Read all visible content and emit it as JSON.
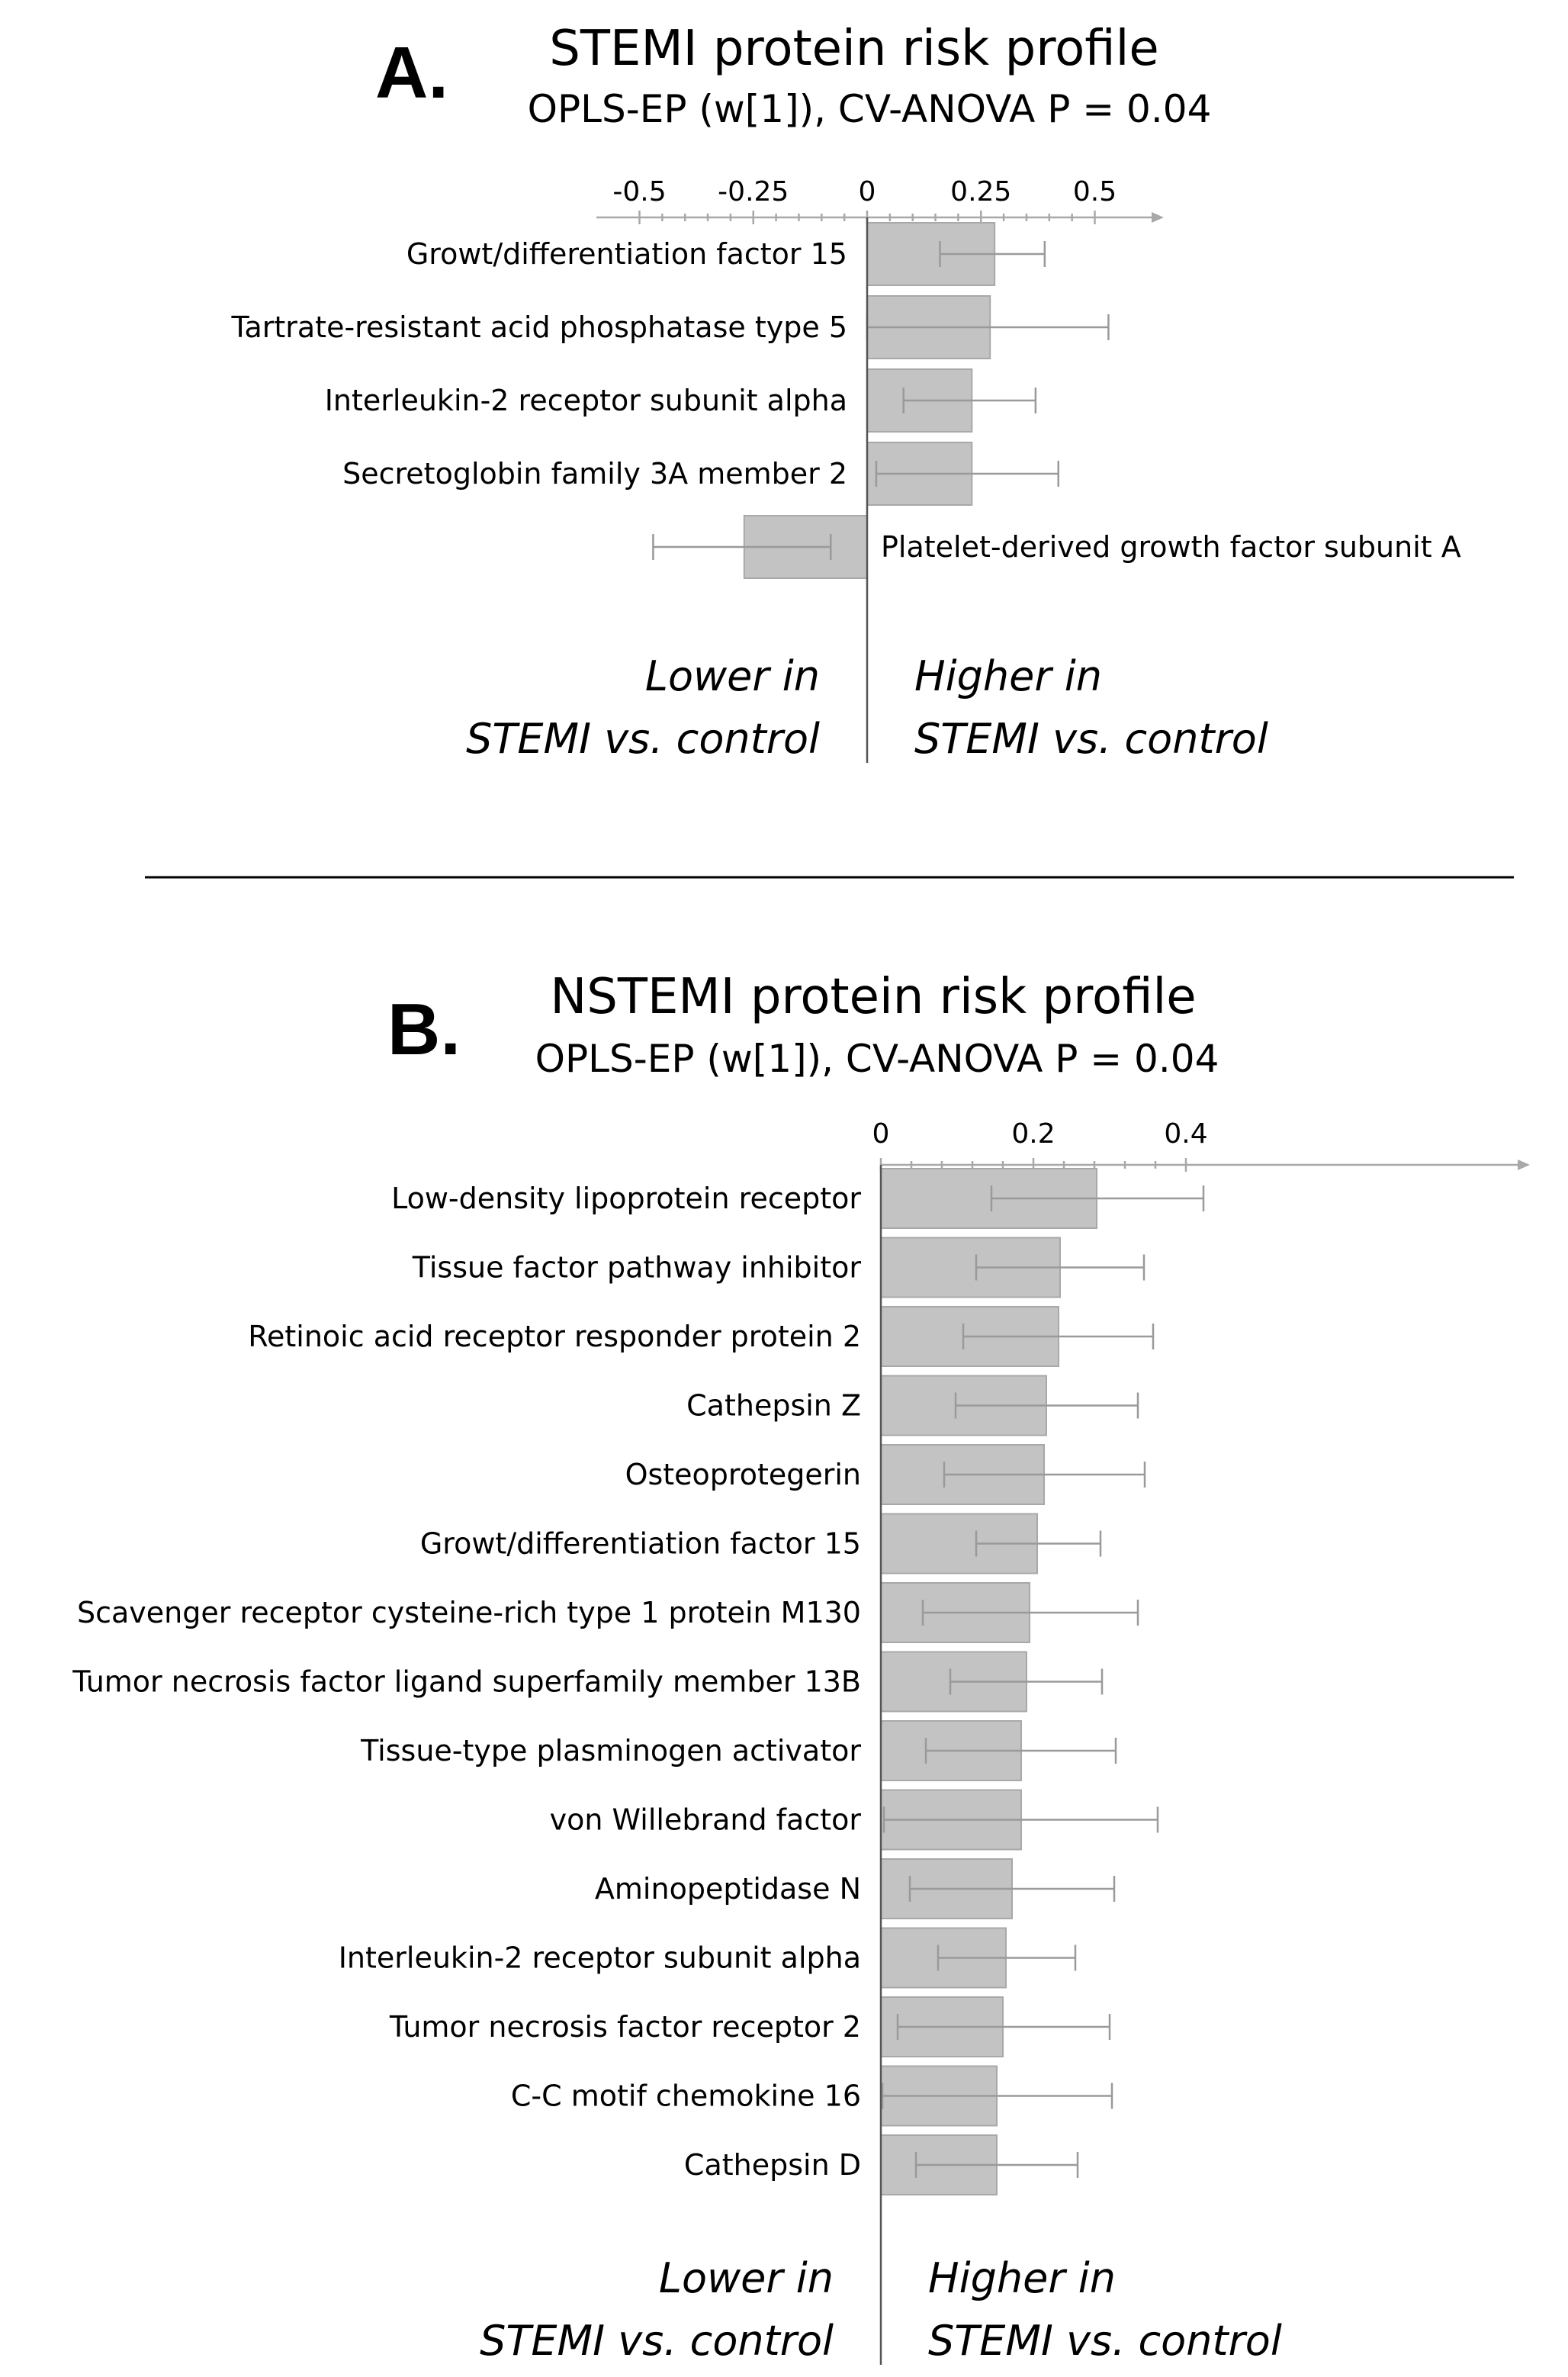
{
  "chart_data": [
    {
      "panel": "A.",
      "type": "bar",
      "orientation": "horizontal",
      "title": "STEMI protein risk profile",
      "subtitle": "OPLS-EP (w[1]), CV-ANOVA P = 0.04",
      "xlim": [
        -0.5,
        0.6
      ],
      "xticks": [
        -0.5,
        -0.25,
        0,
        0.25,
        0.5
      ],
      "xtick_labels": [
        "-0.5",
        "-0.25",
        "0",
        "0.25",
        "0.5"
      ],
      "categories": [
        "Growt/differentiation factor 15",
        "Tartrate-resistant acid phosphatase type 5",
        "Interleukin-2 receptor subunit alpha",
        "Secretoglobin family 3A member 2",
        "Platelet-derived growth factor subunit A"
      ],
      "values": [
        0.28,
        0.27,
        0.23,
        0.23,
        -0.27
      ],
      "error_low": [
        0.16,
        0.0,
        0.08,
        0.02,
        -0.47
      ],
      "error_high": [
        0.39,
        0.53,
        0.37,
        0.42,
        -0.08
      ],
      "annotation_left": [
        "Lower in",
        "STEMI vs. control"
      ],
      "annotation_right": [
        "Higher in",
        "STEMI vs. control"
      ],
      "grid": false
    },
    {
      "panel": "B.",
      "type": "bar",
      "orientation": "horizontal",
      "title": "NSTEMI protein risk profile",
      "subtitle": "OPLS-EP (w[1]), CV-ANOVA P = 0.04",
      "xlim": [
        0,
        0.43
      ],
      "xticks": [
        0,
        0.2,
        0.4
      ],
      "xtick_labels": [
        "0",
        "0.2",
        "0.4"
      ],
      "categories": [
        "Low-density lipoprotein receptor",
        "Tissue factor pathway inhibitor",
        "Retinoic acid receptor responder protein 2",
        "Cathepsin Z",
        "Osteoprotegerin",
        "Growt/differentiation factor 15",
        "Scavenger receptor cysteine-rich type 1 protein M130",
        "Tumor necrosis factor ligand superfamily member 13B",
        "Tissue-type plasminogen activator",
        "von Willebrand factor",
        "Aminopeptidase N",
        "Interleukin-2 receptor subunit alpha",
        "Tumor necrosis factor receptor 2",
        "C-C motif chemokine 16",
        "Cathepsin D"
      ],
      "values": [
        0.283,
        0.235,
        0.233,
        0.217,
        0.214,
        0.205,
        0.195,
        0.191,
        0.184,
        0.184,
        0.172,
        0.164,
        0.16,
        0.152,
        0.152
      ],
      "error_low": [
        0.145,
        0.125,
        0.108,
        0.098,
        0.083,
        0.125,
        0.055,
        0.091,
        0.059,
        0.004,
        0.038,
        0.075,
        0.022,
        0.002,
        0.046
      ],
      "error_high": [
        0.423,
        0.345,
        0.357,
        0.337,
        0.346,
        0.288,
        0.337,
        0.29,
        0.308,
        0.363,
        0.306,
        0.255,
        0.3,
        0.303,
        0.258
      ],
      "annotation_left": [
        "Lower in",
        "STEMI vs. control"
      ],
      "annotation_right": [
        "Higher in",
        "STEMI vs. control"
      ],
      "grid": false
    }
  ]
}
